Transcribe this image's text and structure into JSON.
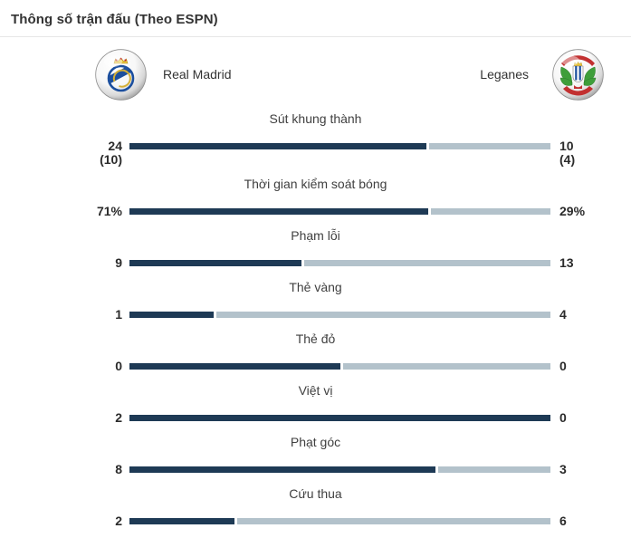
{
  "title": "Thông số trận đấu (Theo ESPN)",
  "teams": {
    "home": {
      "name": "Real Madrid",
      "logo_icon": "real-madrid-crest"
    },
    "away": {
      "name": "Leganes",
      "logo_icon": "leganes-crest"
    }
  },
  "colors": {
    "home_bar": "#1e3a55",
    "away_bar": "#b3c2cb",
    "title_text": "#333333",
    "label_text": "#404040",
    "value_text": "#2b2b2b"
  },
  "chart_data": {
    "type": "bar",
    "orientation": "horizontal-comparison",
    "title": "Thông số trận đấu (Theo ESPN)",
    "legend_position": "top",
    "series": [
      {
        "name": "Real Madrid"
      },
      {
        "name": "Leganes"
      }
    ],
    "stats": [
      {
        "label": "Sút khung thành",
        "home_display": "24",
        "home_sub": "(10)",
        "away_display": "10",
        "away_sub": "(4)",
        "home_value": 24,
        "away_value": 10
      },
      {
        "label": "Thời gian kiểm soát bóng",
        "home_display": "71%",
        "home_sub": "",
        "away_display": "29%",
        "away_sub": "",
        "home_value": 71,
        "away_value": 29
      },
      {
        "label": "Phạm lỗi",
        "home_display": "9",
        "home_sub": "",
        "away_display": "13",
        "away_sub": "",
        "home_value": 9,
        "away_value": 13
      },
      {
        "label": "Thẻ vàng",
        "home_display": "1",
        "home_sub": "",
        "away_display": "4",
        "away_sub": "",
        "home_value": 1,
        "away_value": 4
      },
      {
        "label": "Thẻ đỏ",
        "home_display": "0",
        "home_sub": "",
        "away_display": "0",
        "away_sub": "",
        "home_value": 0,
        "away_value": 0
      },
      {
        "label": "Việt vị",
        "home_display": "2",
        "home_sub": "",
        "away_display": "0",
        "away_sub": "",
        "home_value": 2,
        "away_value": 0
      },
      {
        "label": "Phạt góc",
        "home_display": "8",
        "home_sub": "",
        "away_display": "3",
        "away_sub": "",
        "home_value": 8,
        "away_value": 3
      },
      {
        "label": "Cứu thua",
        "home_display": "2",
        "home_sub": "",
        "away_display": "6",
        "away_sub": "",
        "home_value": 2,
        "away_value": 6
      }
    ]
  }
}
